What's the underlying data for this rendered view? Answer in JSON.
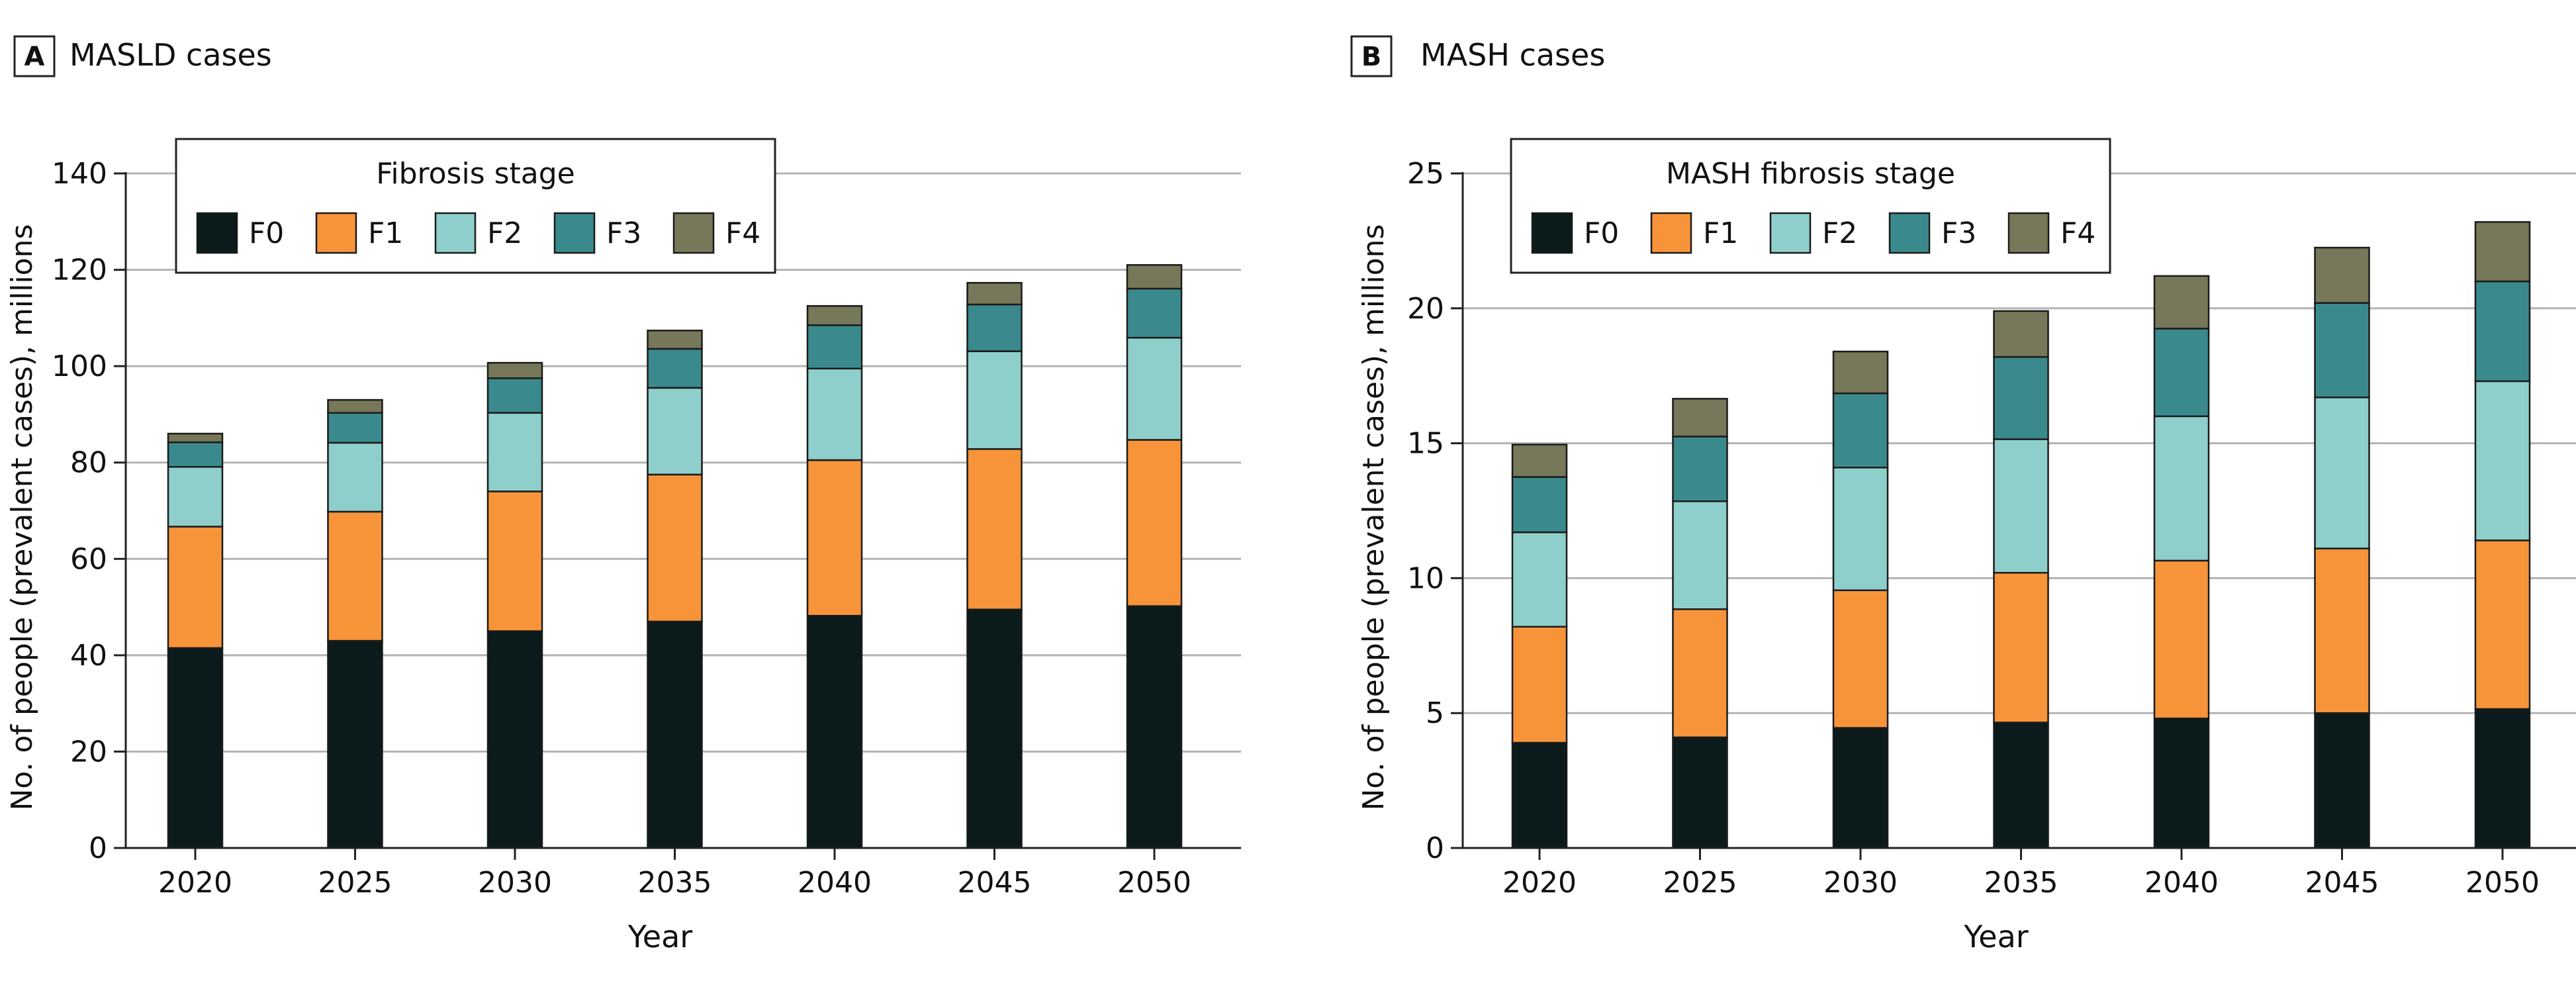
{
  "colors": {
    "F0": "#0b1a1a",
    "F1": "#f7943a",
    "F2": "#8ecfcc",
    "F3": "#3a8a8d",
    "F4": "#777759",
    "grid": "#b3b3b3",
    "axis": "#222222",
    "text": "#111111"
  },
  "chart_data": [
    {
      "type": "bar",
      "stacked": true,
      "panel_label": "A",
      "title": "MASLD cases",
      "xlabel": "Year",
      "ylabel": "No. of people (prevalent cases), millions",
      "ylim": [
        0,
        140
      ],
      "yticks": [
        0,
        20,
        40,
        60,
        80,
        100,
        120,
        140
      ],
      "grid": true,
      "legend": {
        "title": "Fibrosis stage",
        "placement": "top-left"
      },
      "categories": [
        "2020",
        "2025",
        "2030",
        "2035",
        "2040",
        "2045",
        "2050"
      ],
      "series": [
        {
          "name": "F0",
          "values": [
            41.5,
            43,
            45,
            47,
            48.2,
            49.5,
            50.2
          ]
        },
        {
          "name": "F1",
          "values": [
            25.2,
            26.8,
            29,
            30.5,
            32.3,
            33.3,
            34.5
          ]
        },
        {
          "name": "F2",
          "values": [
            12.4,
            14.3,
            16.3,
            18,
            19,
            20.3,
            21.2
          ]
        },
        {
          "name": "F3",
          "values": [
            5.1,
            6.2,
            7.2,
            8.1,
            9,
            9.7,
            10.2
          ]
        },
        {
          "name": "F4",
          "values": [
            1.8,
            2.7,
            3.2,
            3.8,
            4,
            4.5,
            4.9
          ]
        }
      ]
    },
    {
      "type": "bar",
      "stacked": true,
      "panel_label": "B",
      "title": "MASH cases",
      "xlabel": "Year",
      "ylabel": "No. of people (prevalent cases), millions",
      "ylim": [
        0,
        25
      ],
      "yticks": [
        0,
        5,
        10,
        15,
        20,
        25
      ],
      "grid": true,
      "legend": {
        "title": "MASH fibrosis stage",
        "placement": "top-left"
      },
      "categories": [
        "2020",
        "2025",
        "2030",
        "2035",
        "2040",
        "2045",
        "2050"
      ],
      "series": [
        {
          "name": "F0",
          "values": [
            3.9,
            4.1,
            4.45,
            4.65,
            4.8,
            5.0,
            5.15
          ]
        },
        {
          "name": "F1",
          "values": [
            4.3,
            4.75,
            5.1,
            5.55,
            5.85,
            6.1,
            6.25
          ]
        },
        {
          "name": "F2",
          "values": [
            3.5,
            4.0,
            4.55,
            4.95,
            5.35,
            5.6,
            5.9
          ]
        },
        {
          "name": "F3",
          "values": [
            2.05,
            2.4,
            2.75,
            3.05,
            3.25,
            3.5,
            3.7
          ]
        },
        {
          "name": "F4",
          "values": [
            1.2,
            1.4,
            1.55,
            1.7,
            1.95,
            2.05,
            2.2
          ]
        }
      ]
    }
  ]
}
